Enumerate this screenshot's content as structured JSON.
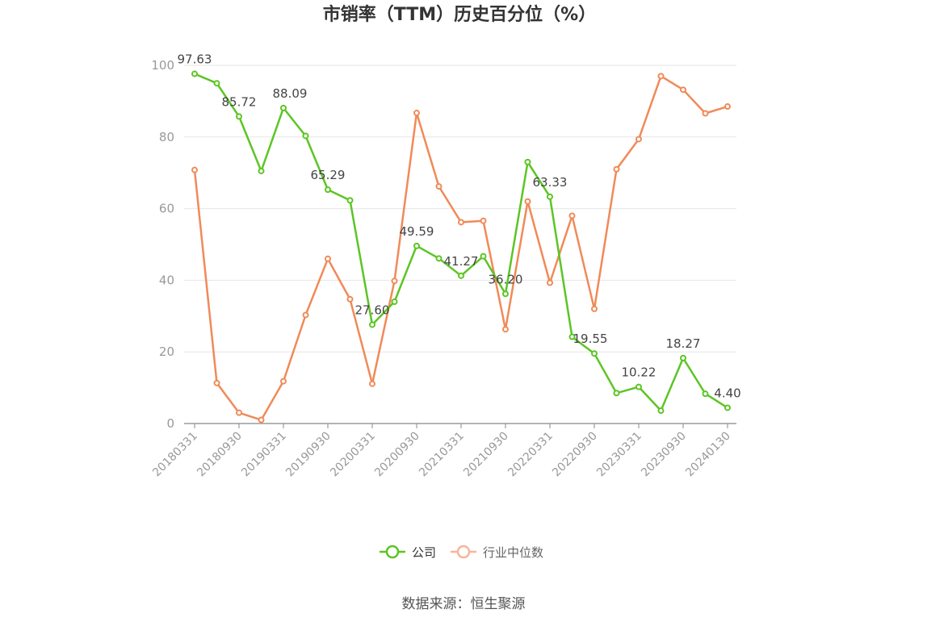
{
  "chart_data": {
    "type": "line",
    "title": "市销率（TTM）历史百分位（%）",
    "source": "数据来源：恒生聚源",
    "ylim": [
      0,
      100
    ],
    "yticks": [
      0,
      20,
      40,
      60,
      80,
      100
    ],
    "grid": true,
    "legend_position": "bottom",
    "x": [
      "20180331",
      "20180630",
      "20180930",
      "20181231",
      "20190331",
      "20190630",
      "20190930",
      "20191231",
      "20200331",
      "20200630",
      "20200930",
      "20201231",
      "20210331",
      "20210630",
      "20210930",
      "20211231",
      "20220331",
      "20220630",
      "20220930",
      "20221231",
      "20230331",
      "20230630",
      "20230930",
      "20231231",
      "20240130"
    ],
    "xtick_labels": [
      "20180331",
      "20180930",
      "20190331",
      "20190930",
      "20200331",
      "20200930",
      "20210331",
      "20210930",
      "20220331",
      "20220930",
      "20230331",
      "20230930",
      "20240130"
    ],
    "series": [
      {
        "name": "公司",
        "color": "#5cc524",
        "values": [
          97.63,
          95.0,
          85.72,
          70.5,
          88.09,
          80.3,
          65.29,
          62.3,
          27.6,
          34.0,
          49.59,
          46.1,
          41.27,
          46.7,
          36.2,
          73.0,
          63.33,
          24.2,
          19.55,
          8.5,
          10.22,
          3.6,
          18.27,
          8.3,
          4.4
        ],
        "labels": {
          "0": "97.63",
          "2": "85.72",
          "4": "88.09",
          "6": "65.29",
          "8": "27.60",
          "10": "49.59",
          "12": "41.27",
          "14": "36.20",
          "16": "63.33",
          "18": "19.55",
          "20": "10.22",
          "22": "18.27",
          "24": "4.40"
        }
      },
      {
        "name": "行业中位数",
        "color": "#f08a58",
        "values": [
          70.8,
          11.3,
          3.0,
          1.0,
          11.8,
          30.3,
          46.0,
          34.7,
          11.1,
          39.8,
          86.7,
          66.2,
          56.2,
          56.6,
          26.3,
          62.0,
          39.3,
          58.0,
          32.0,
          71.0,
          79.4,
          97.0,
          93.2,
          86.6,
          88.5
        ]
      }
    ]
  }
}
